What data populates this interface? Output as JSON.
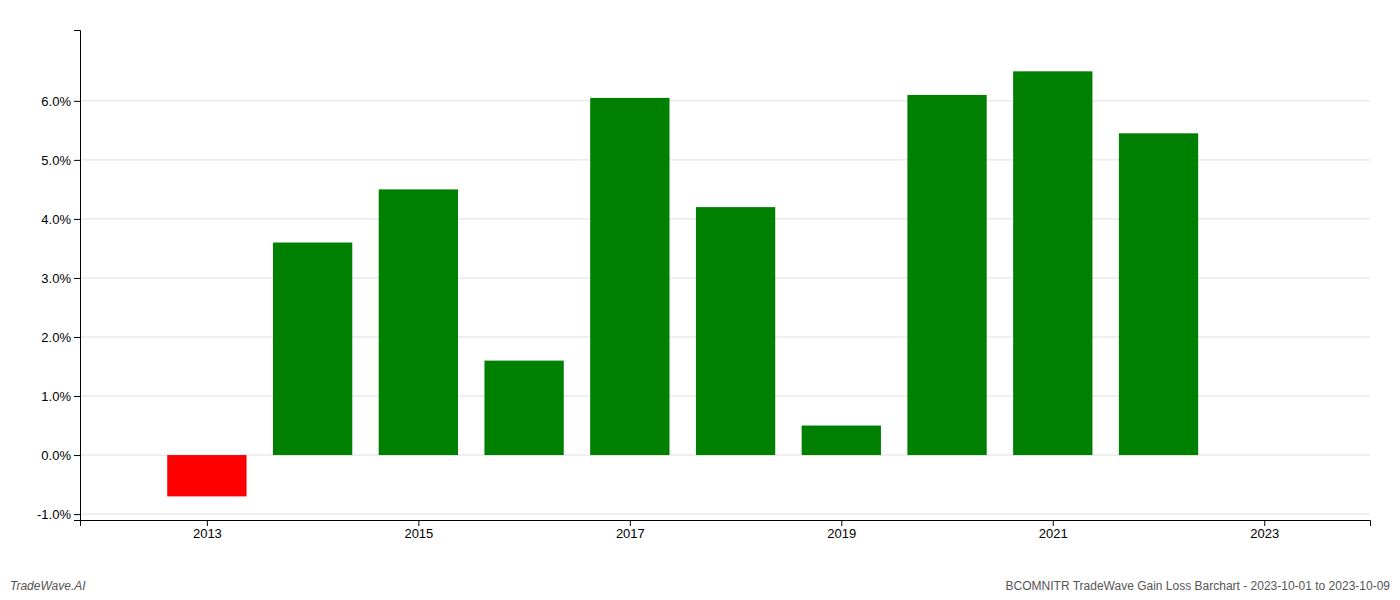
{
  "chart_data": {
    "type": "bar",
    "x": [
      2013,
      2014,
      2015,
      2016,
      2017,
      2018,
      2019,
      2020,
      2021,
      2022
    ],
    "values": [
      -0.007,
      0.036,
      0.045,
      0.016,
      0.0605,
      0.042,
      0.005,
      0.061,
      0.065,
      0.0545
    ],
    "colors": [
      "#ff0000",
      "#008000",
      "#008000",
      "#008000",
      "#008000",
      "#008000",
      "#008000",
      "#008000",
      "#008000",
      "#008000"
    ],
    "xlim": [
      2011.8,
      2024.0
    ],
    "xticks": [
      2013,
      2015,
      2017,
      2019,
      2021,
      2023
    ],
    "ylim": [
      -0.011,
      0.072
    ],
    "yticks": [
      {
        "value": -0.01,
        "label": "-1.0%"
      },
      {
        "value": 0.0,
        "label": "0.0%"
      },
      {
        "value": 0.01,
        "label": "1.0%"
      },
      {
        "value": 0.02,
        "label": "2.0%"
      },
      {
        "value": 0.03,
        "label": "3.0%"
      },
      {
        "value": 0.04,
        "label": "4.0%"
      },
      {
        "value": 0.05,
        "label": "5.0%"
      },
      {
        "value": 0.06,
        "label": "6.0%"
      }
    ],
    "grid": true,
    "annotations": [
      "TradeWave.AI",
      "BCOMNITR TradeWave Gain Loss Barchart - 2023-10-01 to 2023-10-09"
    ]
  }
}
